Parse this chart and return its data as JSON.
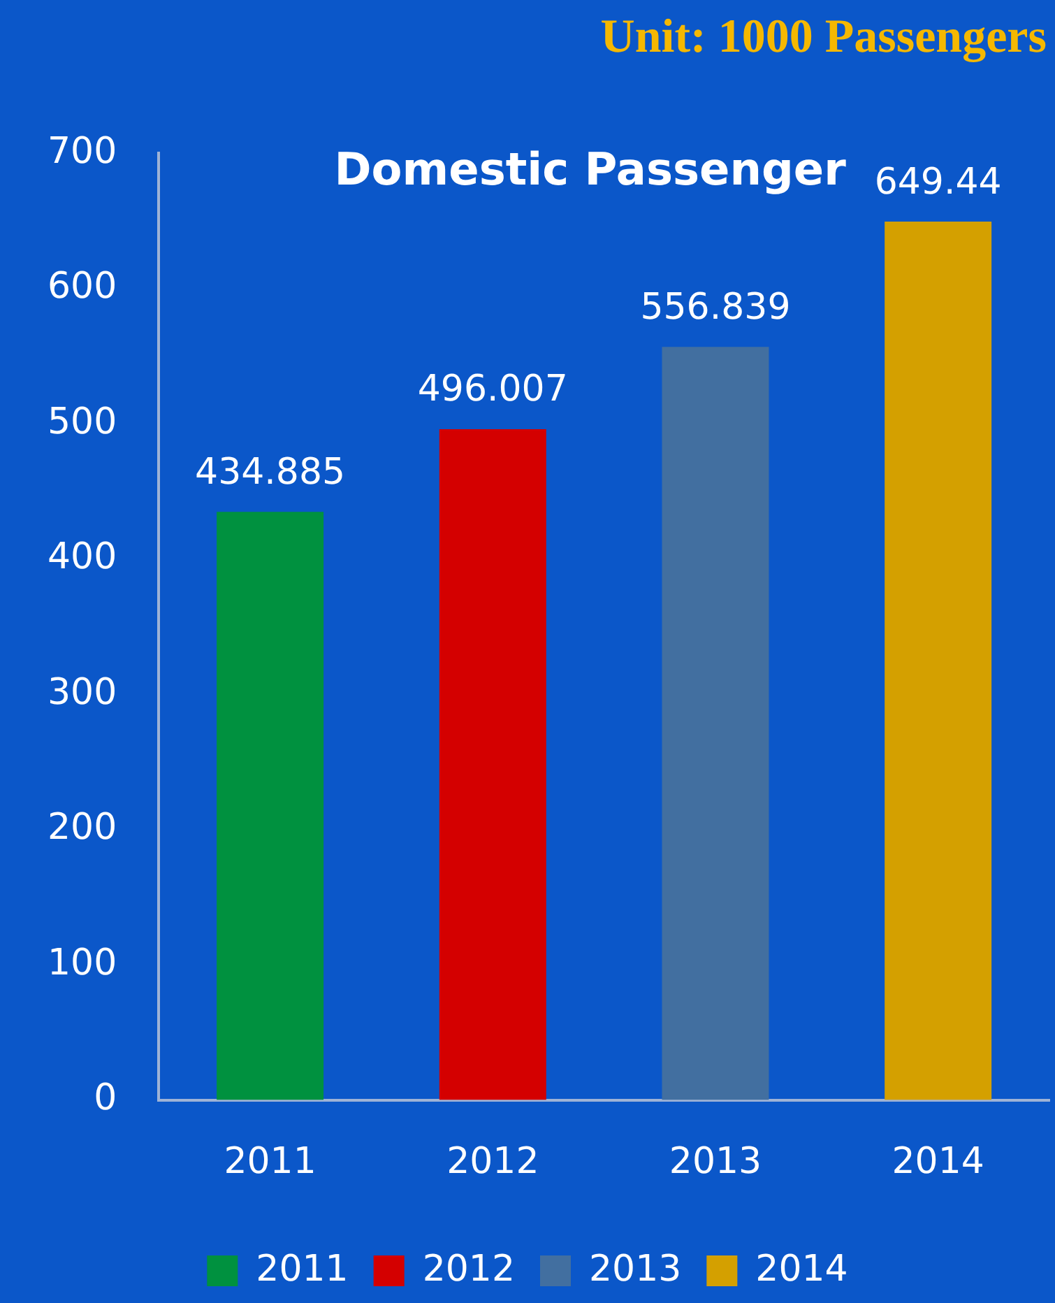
{
  "chart_data": {
    "type": "bar",
    "title": "Domestic Passenger",
    "subtitle": "Unit: 1000 Passengers",
    "categories": [
      "2011",
      "2012",
      "2013",
      "2014"
    ],
    "series": [
      {
        "name": "2011",
        "color": "#00913f",
        "values": [
          434.885,
          null,
          null,
          null
        ]
      },
      {
        "name": "2012",
        "color": "#d40000",
        "values": [
          null,
          496.007,
          null,
          null
        ]
      },
      {
        "name": "2013",
        "color": "#426fa0",
        "values": [
          null,
          null,
          556.839,
          null
        ]
      },
      {
        "name": "2014",
        "color": "#d4a000",
        "values": [
          null,
          null,
          null,
          649.44
        ]
      }
    ],
    "stacked": true,
    "ylim": [
      0,
      700
    ],
    "yticks": [
      0,
      100,
      200,
      300,
      400,
      500,
      600,
      700
    ],
    "grid": false,
    "legend": "bottom",
    "data_labels": true
  }
}
